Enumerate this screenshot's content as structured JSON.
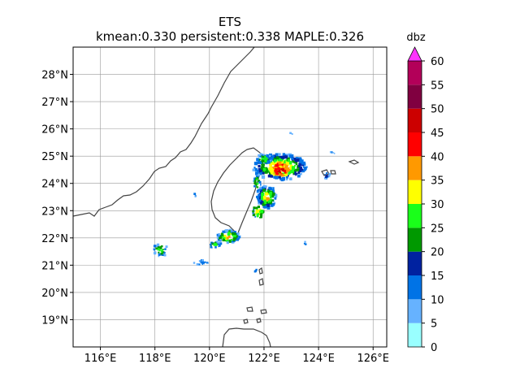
{
  "title": "ETS",
  "subtitle": "kmean:0.330 persistent:0.338 MAPLE:0.326",
  "map": {
    "lon_range": [
      115,
      126.5
    ],
    "lat_range": [
      18,
      29
    ],
    "x_ticks": [
      {
        "value": 116,
        "label": "116°E"
      },
      {
        "value": 118,
        "label": "118°E"
      },
      {
        "value": 120,
        "label": "120°E"
      },
      {
        "value": 122,
        "label": "122°E"
      },
      {
        "value": 124,
        "label": "124°E"
      },
      {
        "value": 126,
        "label": "126°E"
      }
    ],
    "y_ticks": [
      {
        "value": 19,
        "label": "19°N"
      },
      {
        "value": 20,
        "label": "20°N"
      },
      {
        "value": 21,
        "label": "21°N"
      },
      {
        "value": 22,
        "label": "22°N"
      },
      {
        "value": 23,
        "label": "23°N"
      },
      {
        "value": 24,
        "label": "24°N"
      },
      {
        "value": 25,
        "label": "25°N"
      },
      {
        "value": 26,
        "label": "26°N"
      },
      {
        "value": 27,
        "label": "27°N"
      },
      {
        "value": 28,
        "label": "28°N"
      }
    ],
    "grid": true,
    "coastline_color": "#444444"
  },
  "colorbar": {
    "unit": "dbz",
    "bounds": [
      0,
      5,
      10,
      15,
      20,
      25,
      30,
      35,
      40,
      45,
      50,
      55,
      60
    ],
    "colors": [
      "#99ffff",
      "#66b2ff",
      "#0073e6",
      "#0022a0",
      "#009900",
      "#1aff1a",
      "#ffff00",
      "#ff9900",
      "#ff0000",
      "#cc0000",
      "#800040",
      "#b30059"
    ],
    "extend_color": "#ff33ff",
    "tick_labels": [
      "0",
      "5",
      "10",
      "15",
      "20",
      "25",
      "30",
      "35",
      "40",
      "45",
      "50",
      "55",
      "60"
    ]
  }
}
